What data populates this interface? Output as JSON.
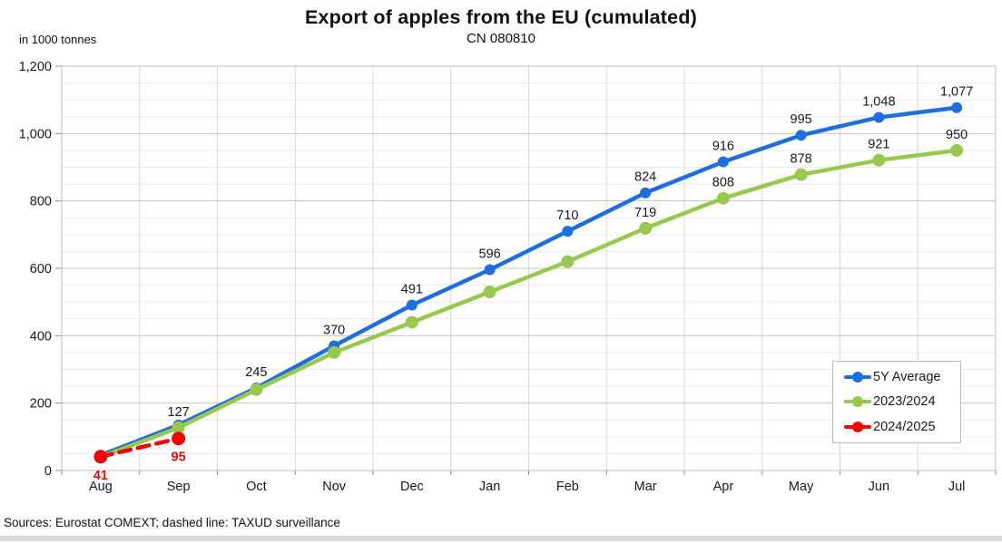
{
  "page": {
    "title": "Export of apples from the EU (cumulated)",
    "subtitle": "CN 080810",
    "unit_label": "in 1000 tonnes",
    "source_note": "Sources: Eurostat COMEXT; dashed line: TAXUD surveillance"
  },
  "chart_data": {
    "type": "line",
    "title": "Export of apples from the EU (cumulated)",
    "subtitle": "CN 080810",
    "xlabel": "",
    "ylabel": "in 1000 tonnes",
    "categories": [
      "Aug",
      "Sep",
      "Oct",
      "Nov",
      "Dec",
      "Jan",
      "Feb",
      "Mar",
      "Apr",
      "May",
      "Jun",
      "Jul"
    ],
    "ylim": [
      0,
      1200
    ],
    "ytick_interval": 200,
    "minor_ytick_interval": 50,
    "ytick_labels": [
      "0",
      "200",
      "400",
      "600",
      "800",
      "1,000",
      "1,200"
    ],
    "grid": true,
    "legend_position": "inside-right",
    "series": [
      {
        "name": "5Y Average",
        "color": "#1e6ee0",
        "style": "solid",
        "values": [
          45,
          135,
          245,
          370,
          491,
          596,
          710,
          824,
          916,
          995,
          1048,
          1077
        ],
        "labeled_indices": [
          2,
          3,
          4,
          5,
          6,
          7,
          8,
          9,
          10,
          11
        ],
        "estimated_indices": [
          0,
          1
        ],
        "label_position": "above"
      },
      {
        "name": "2023/2024",
        "color": "#98c94e",
        "style": "solid",
        "values": [
          40,
          127,
          240,
          350,
          440,
          530,
          620,
          719,
          808,
          878,
          921,
          950
        ],
        "labeled_indices": [
          1,
          7,
          8,
          9,
          10,
          11
        ],
        "estimated_indices": [
          0,
          2,
          3,
          4,
          5,
          6
        ],
        "label_position": "above"
      },
      {
        "name": "2024/2025",
        "color": "#f20505",
        "style": "dashed",
        "values": [
          41,
          95
        ],
        "labeled_indices": [
          0,
          1
        ],
        "estimated_indices": [],
        "label_position": "below"
      }
    ]
  }
}
